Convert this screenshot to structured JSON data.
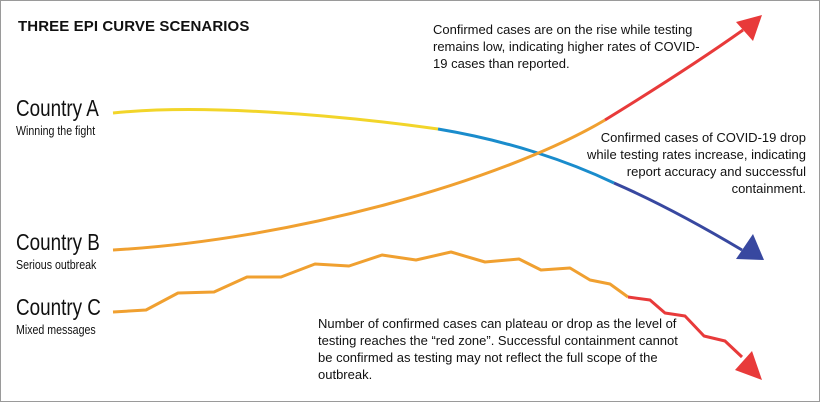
{
  "title": "THREE EPI CURVE SCENARIOS",
  "countries": [
    {
      "name": "Country A",
      "subtitle": "Winning the fight"
    },
    {
      "name": "Country B",
      "subtitle": "Serious outbreak"
    },
    {
      "name": "Country C",
      "subtitle": "Mixed messages"
    }
  ],
  "notes": {
    "rising": "Confirmed cases are on the rise while testing remains low, indicating higher rates of COVID-19 cases than reported.",
    "dropping": "Confirmed cases of COVID-19 drop while testing rates increase, indicating report accuracy and successful containment.",
    "plateau": "Number of confirmed cases can plateau or drop as the level of testing reaches the “red zone”. Successful containment cannot be confirmed as testing may not reflect the full scope of the outbreak."
  },
  "colors": {
    "yellow": "#f2d52a",
    "orange": "#f0a030",
    "blue": "#1a8ccc",
    "navy": "#3848a0",
    "red": "#e83a3a"
  }
}
